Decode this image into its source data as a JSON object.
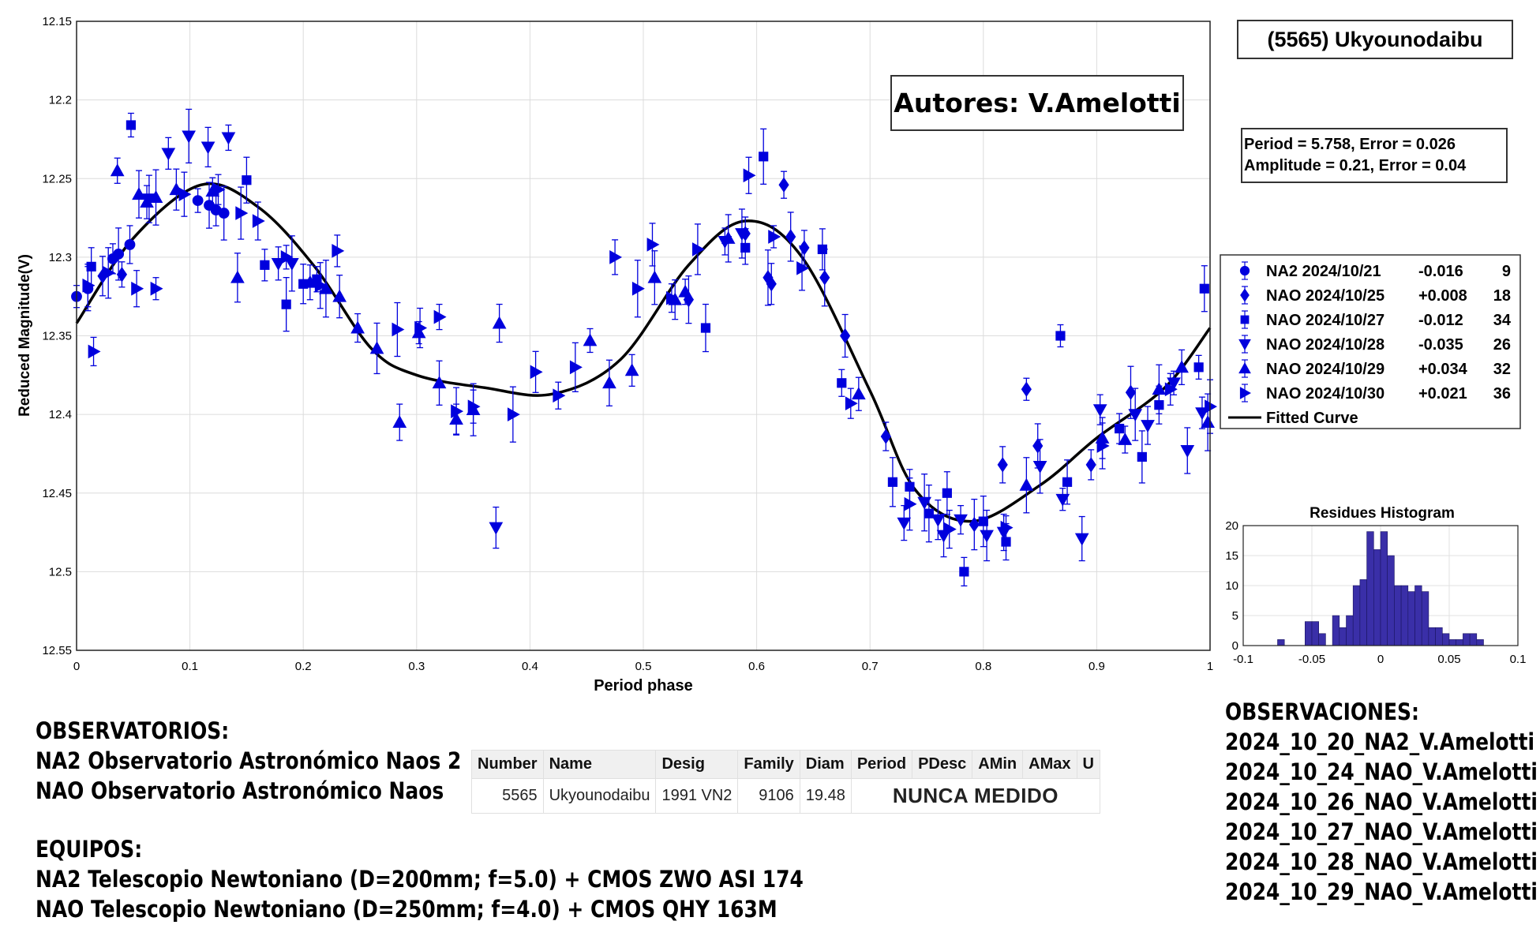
{
  "title_box": "(5565) Ukyounodaibu",
  "authors_box": "Autores: V.Amelotti",
  "period_box": {
    "line1": "Period =  5.758, Error = 0.026",
    "line2": "Amplitude = 0.21, Error = 0.04"
  },
  "chart_data": [
    {
      "type": "scatter",
      "xlabel": "Period phase",
      "ylabel": "Reduced Magnitude(V)",
      "xlim": [
        0,
        1
      ],
      "ylim": [
        12.15,
        12.55
      ],
      "y_reversed": true,
      "x_ticks": [
        "0",
        "0.1",
        "0.2",
        "0.3",
        "0.4",
        "0.5",
        "0.6",
        "0.7",
        "0.8",
        "0.9",
        "1"
      ],
      "y_ticks": [
        "12.15",
        "12.2",
        "12.25",
        "12.3",
        "12.35",
        "12.4",
        "12.45",
        "12.5",
        "12.55"
      ],
      "grid": true,
      "legend_position": "right",
      "legend": [
        {
          "label": "NA2 2024/10/21",
          "offset": "-0.016",
          "count": "9",
          "marker": "circle"
        },
        {
          "label": "NAO 2024/10/25",
          "offset": "+0.008",
          "count": "18",
          "marker": "diamond"
        },
        {
          "label": "NAO 2024/10/27",
          "offset": "-0.012",
          "count": "34",
          "marker": "square"
        },
        {
          "label": "NAO 2024/10/28",
          "offset": "-0.035",
          "count": "26",
          "marker": "triangle-down"
        },
        {
          "label": "NAO 2024/10/29",
          "offset": "+0.034",
          "count": "32",
          "marker": "triangle-up"
        },
        {
          "label": "NAO 2024/10/30",
          "offset": "+0.021",
          "count": "36",
          "marker": "triangle-right"
        },
        {
          "label": "Fitted Curve",
          "offset": "",
          "count": "",
          "marker": "line"
        }
      ],
      "points": [
        {
          "x": 0.0,
          "y": 12.325,
          "m": "circle"
        },
        {
          "x": 0.01,
          "y": 12.32,
          "m": "circle"
        },
        {
          "x": 0.032,
          "y": 12.301,
          "m": "circle"
        },
        {
          "x": 0.037,
          "y": 12.298,
          "m": "circle"
        },
        {
          "x": 0.047,
          "y": 12.292,
          "m": "circle"
        },
        {
          "x": 0.107,
          "y": 12.264,
          "m": "circle"
        },
        {
          "x": 0.117,
          "y": 12.267,
          "m": "circle"
        },
        {
          "x": 0.123,
          "y": 12.27,
          "m": "circle"
        },
        {
          "x": 0.13,
          "y": 12.272,
          "m": "circle"
        },
        {
          "x": 0.023,
          "y": 12.312,
          "m": "diamond"
        },
        {
          "x": 0.04,
          "y": 12.311,
          "m": "diamond"
        },
        {
          "x": 0.54,
          "y": 12.327,
          "m": "diamond"
        },
        {
          "x": 0.59,
          "y": 12.285,
          "m": "diamond"
        },
        {
          "x": 0.61,
          "y": 12.313,
          "m": "diamond"
        },
        {
          "x": 0.613,
          "y": 12.317,
          "m": "diamond"
        },
        {
          "x": 0.624,
          "y": 12.254,
          "m": "diamond"
        },
        {
          "x": 0.63,
          "y": 12.287,
          "m": "diamond"
        },
        {
          "x": 0.642,
          "y": 12.294,
          "m": "diamond"
        },
        {
          "x": 0.66,
          "y": 12.313,
          "m": "diamond"
        },
        {
          "x": 0.678,
          "y": 12.35,
          "m": "diamond"
        },
        {
          "x": 0.714,
          "y": 12.414,
          "m": "diamond"
        },
        {
          "x": 0.792,
          "y": 12.47,
          "m": "diamond"
        },
        {
          "x": 0.817,
          "y": 12.432,
          "m": "diamond"
        },
        {
          "x": 0.838,
          "y": 12.384,
          "m": "diamond"
        },
        {
          "x": 0.848,
          "y": 12.42,
          "m": "diamond"
        },
        {
          "x": 0.895,
          "y": 12.432,
          "m": "diamond"
        },
        {
          "x": 0.93,
          "y": 12.386,
          "m": "diamond"
        },
        {
          "x": 0.013,
          "y": 12.306,
          "m": "square"
        },
        {
          "x": 0.048,
          "y": 12.216,
          "m": "square"
        },
        {
          "x": 0.15,
          "y": 12.251,
          "m": "square"
        },
        {
          "x": 0.166,
          "y": 12.305,
          "m": "square"
        },
        {
          "x": 0.185,
          "y": 12.33,
          "m": "square"
        },
        {
          "x": 0.2,
          "y": 12.317,
          "m": "square"
        },
        {
          "x": 0.212,
          "y": 12.314,
          "m": "square"
        },
        {
          "x": 0.555,
          "y": 12.345,
          "m": "square"
        },
        {
          "x": 0.59,
          "y": 12.294,
          "m": "square"
        },
        {
          "x": 0.606,
          "y": 12.236,
          "m": "square"
        },
        {
          "x": 0.658,
          "y": 12.295,
          "m": "square"
        },
        {
          "x": 0.675,
          "y": 12.38,
          "m": "square"
        },
        {
          "x": 0.72,
          "y": 12.443,
          "m": "square"
        },
        {
          "x": 0.735,
          "y": 12.446,
          "m": "square"
        },
        {
          "x": 0.752,
          "y": 12.463,
          "m": "square"
        },
        {
          "x": 0.768,
          "y": 12.45,
          "m": "square"
        },
        {
          "x": 0.783,
          "y": 12.5,
          "m": "square"
        },
        {
          "x": 0.8,
          "y": 12.468,
          "m": "square"
        },
        {
          "x": 0.82,
          "y": 12.481,
          "m": "square"
        },
        {
          "x": 0.868,
          "y": 12.35,
          "m": "square"
        },
        {
          "x": 0.874,
          "y": 12.443,
          "m": "square"
        },
        {
          "x": 0.92,
          "y": 12.409,
          "m": "square"
        },
        {
          "x": 0.94,
          "y": 12.427,
          "m": "square"
        },
        {
          "x": 0.955,
          "y": 12.394,
          "m": "square"
        },
        {
          "x": 0.99,
          "y": 12.37,
          "m": "square"
        },
        {
          "x": 0.995,
          "y": 12.32,
          "m": "square"
        },
        {
          "x": 0.081,
          "y": 12.234,
          "m": "triangle-down"
        },
        {
          "x": 0.099,
          "y": 12.223,
          "m": "triangle-down"
        },
        {
          "x": 0.116,
          "y": 12.23,
          "m": "triangle-down"
        },
        {
          "x": 0.134,
          "y": 12.224,
          "m": "triangle-down"
        },
        {
          "x": 0.064,
          "y": 12.263,
          "m": "triangle-down"
        },
        {
          "x": 0.178,
          "y": 12.304,
          "m": "triangle-down"
        },
        {
          "x": 0.19,
          "y": 12.304,
          "m": "triangle-down"
        },
        {
          "x": 0.37,
          "y": 12.472,
          "m": "triangle-down"
        },
        {
          "x": 0.572,
          "y": 12.29,
          "m": "triangle-down"
        },
        {
          "x": 0.587,
          "y": 12.285,
          "m": "triangle-down"
        },
        {
          "x": 0.73,
          "y": 12.469,
          "m": "triangle-down"
        },
        {
          "x": 0.748,
          "y": 12.456,
          "m": "triangle-down"
        },
        {
          "x": 0.765,
          "y": 12.477,
          "m": "triangle-down"
        },
        {
          "x": 0.78,
          "y": 12.467,
          "m": "triangle-down"
        },
        {
          "x": 0.803,
          "y": 12.477,
          "m": "triangle-down"
        },
        {
          "x": 0.818,
          "y": 12.475,
          "m": "triangle-down"
        },
        {
          "x": 0.87,
          "y": 12.454,
          "m": "triangle-down"
        },
        {
          "x": 0.887,
          "y": 12.479,
          "m": "triangle-down"
        },
        {
          "x": 0.903,
          "y": 12.397,
          "m": "triangle-down"
        },
        {
          "x": 0.934,
          "y": 12.4,
          "m": "triangle-down"
        },
        {
          "x": 0.945,
          "y": 12.407,
          "m": "triangle-down"
        },
        {
          "x": 0.968,
          "y": 12.38,
          "m": "triangle-down"
        },
        {
          "x": 0.98,
          "y": 12.423,
          "m": "triangle-down"
        },
        {
          "x": 0.993,
          "y": 12.399,
          "m": "triangle-down"
        },
        {
          "x": 0.85,
          "y": 12.433,
          "m": "triangle-down"
        },
        {
          "x": 0.76,
          "y": 12.467,
          "m": "triangle-down"
        },
        {
          "x": 0.036,
          "y": 12.245,
          "m": "triangle-up"
        },
        {
          "x": 0.055,
          "y": 12.26,
          "m": "triangle-up"
        },
        {
          "x": 0.062,
          "y": 12.265,
          "m": "triangle-up"
        },
        {
          "x": 0.07,
          "y": 12.262,
          "m": "triangle-up"
        },
        {
          "x": 0.088,
          "y": 12.257,
          "m": "triangle-up"
        },
        {
          "x": 0.12,
          "y": 12.258,
          "m": "triangle-up"
        },
        {
          "x": 0.142,
          "y": 12.313,
          "m": "triangle-up"
        },
        {
          "x": 0.206,
          "y": 12.316,
          "m": "triangle-up"
        },
        {
          "x": 0.22,
          "y": 12.32,
          "m": "triangle-up"
        },
        {
          "x": 0.232,
          "y": 12.325,
          "m": "triangle-up"
        },
        {
          "x": 0.248,
          "y": 12.345,
          "m": "triangle-up"
        },
        {
          "x": 0.265,
          "y": 12.358,
          "m": "triangle-up"
        },
        {
          "x": 0.285,
          "y": 12.405,
          "m": "triangle-up"
        },
        {
          "x": 0.302,
          "y": 12.348,
          "m": "triangle-up"
        },
        {
          "x": 0.32,
          "y": 12.38,
          "m": "triangle-up"
        },
        {
          "x": 0.335,
          "y": 12.403,
          "m": "triangle-up"
        },
        {
          "x": 0.35,
          "y": 12.397,
          "m": "triangle-up"
        },
        {
          "x": 0.373,
          "y": 12.342,
          "m": "triangle-up"
        },
        {
          "x": 0.453,
          "y": 12.353,
          "m": "triangle-up"
        },
        {
          "x": 0.47,
          "y": 12.38,
          "m": "triangle-up"
        },
        {
          "x": 0.49,
          "y": 12.372,
          "m": "triangle-up"
        },
        {
          "x": 0.51,
          "y": 12.313,
          "m": "triangle-up"
        },
        {
          "x": 0.528,
          "y": 12.327,
          "m": "triangle-up"
        },
        {
          "x": 0.537,
          "y": 12.322,
          "m": "triangle-up"
        },
        {
          "x": 0.575,
          "y": 12.288,
          "m": "triangle-up"
        },
        {
          "x": 0.69,
          "y": 12.387,
          "m": "triangle-up"
        },
        {
          "x": 0.838,
          "y": 12.445,
          "m": "triangle-up"
        },
        {
          "x": 0.905,
          "y": 12.415,
          "m": "triangle-up"
        },
        {
          "x": 0.925,
          "y": 12.416,
          "m": "triangle-up"
        },
        {
          "x": 0.955,
          "y": 12.384,
          "m": "triangle-up"
        },
        {
          "x": 0.975,
          "y": 12.37,
          "m": "triangle-up"
        },
        {
          "x": 0.998,
          "y": 12.405,
          "m": "triangle-up"
        },
        {
          "x": 0.01,
          "y": 12.318,
          "m": "triangle-right"
        },
        {
          "x": 0.015,
          "y": 12.36,
          "m": "triangle-right"
        },
        {
          "x": 0.028,
          "y": 12.31,
          "m": "triangle-right"
        },
        {
          "x": 0.053,
          "y": 12.32,
          "m": "triangle-right"
        },
        {
          "x": 0.07,
          "y": 12.32,
          "m": "triangle-right"
        },
        {
          "x": 0.095,
          "y": 12.26,
          "m": "triangle-right"
        },
        {
          "x": 0.125,
          "y": 12.257,
          "m": "triangle-right"
        },
        {
          "x": 0.145,
          "y": 12.272,
          "m": "triangle-right"
        },
        {
          "x": 0.16,
          "y": 12.277,
          "m": "triangle-right"
        },
        {
          "x": 0.185,
          "y": 12.3,
          "m": "triangle-right"
        },
        {
          "x": 0.215,
          "y": 12.318,
          "m": "triangle-right"
        },
        {
          "x": 0.23,
          "y": 12.296,
          "m": "triangle-right"
        },
        {
          "x": 0.283,
          "y": 12.346,
          "m": "triangle-right"
        },
        {
          "x": 0.303,
          "y": 12.345,
          "m": "triangle-right"
        },
        {
          "x": 0.32,
          "y": 12.338,
          "m": "triangle-right"
        },
        {
          "x": 0.335,
          "y": 12.398,
          "m": "triangle-right"
        },
        {
          "x": 0.35,
          "y": 12.395,
          "m": "triangle-right"
        },
        {
          "x": 0.385,
          "y": 12.4,
          "m": "triangle-right"
        },
        {
          "x": 0.405,
          "y": 12.373,
          "m": "triangle-right"
        },
        {
          "x": 0.425,
          "y": 12.388,
          "m": "triangle-right"
        },
        {
          "x": 0.44,
          "y": 12.37,
          "m": "triangle-right"
        },
        {
          "x": 0.475,
          "y": 12.3,
          "m": "triangle-right"
        },
        {
          "x": 0.495,
          "y": 12.32,
          "m": "triangle-right"
        },
        {
          "x": 0.508,
          "y": 12.292,
          "m": "triangle-right"
        },
        {
          "x": 0.525,
          "y": 12.326,
          "m": "triangle-right"
        },
        {
          "x": 0.548,
          "y": 12.295,
          "m": "triangle-right"
        },
        {
          "x": 0.593,
          "y": 12.248,
          "m": "triangle-right"
        },
        {
          "x": 0.615,
          "y": 12.287,
          "m": "triangle-right"
        },
        {
          "x": 0.64,
          "y": 12.307,
          "m": "triangle-right"
        },
        {
          "x": 0.683,
          "y": 12.393,
          "m": "triangle-right"
        },
        {
          "x": 0.735,
          "y": 12.457,
          "m": "triangle-right"
        },
        {
          "x": 0.77,
          "y": 12.473,
          "m": "triangle-right"
        },
        {
          "x": 0.82,
          "y": 12.472,
          "m": "triangle-right"
        },
        {
          "x": 0.905,
          "y": 12.42,
          "m": "triangle-right"
        },
        {
          "x": 0.965,
          "y": 12.384,
          "m": "triangle-right"
        },
        {
          "x": 1.0,
          "y": 12.395,
          "m": "triangle-right"
        }
      ],
      "fitted_curve": {
        "period": 5.758,
        "amplitude": 0.21
      }
    },
    {
      "type": "bar",
      "title": "Residues Histogram",
      "xlim": [
        -0.1,
        0.1
      ],
      "ylim": [
        0,
        20
      ],
      "x_ticks": [
        "-0.1",
        "-0.05",
        "0",
        "0.05",
        "0.1"
      ],
      "y_ticks": [
        "0",
        "5",
        "10",
        "15",
        "20"
      ],
      "bin_width": 0.005,
      "bin_starts": [
        -0.075,
        -0.07,
        -0.065,
        -0.06,
        -0.055,
        -0.05,
        -0.045,
        -0.04,
        -0.035,
        -0.03,
        -0.025,
        -0.02,
        -0.015,
        -0.01,
        -0.005,
        0,
        0.005,
        0.01,
        0.015,
        0.02,
        0.025,
        0.03,
        0.035,
        0.04,
        0.045,
        0.05,
        0.055,
        0.06,
        0.065,
        0.07,
        0.075
      ],
      "values": [
        1,
        0,
        0,
        0,
        4,
        4,
        2,
        0,
        5,
        3,
        5,
        10,
        11,
        19,
        16,
        19,
        15,
        10,
        10,
        9,
        10,
        9,
        3,
        3,
        2,
        1,
        1,
        2,
        2,
        1,
        0
      ]
    }
  ],
  "notes_left": {
    "obs_heading": "OBSERVATORIOS:",
    "obs_lines": [
      "NA2 Observatorio Astronómico Naos 2",
      "NAO Observatorio Astronómico Naos"
    ],
    "equip_heading": "EQUIPOS:",
    "equip_lines": [
      "NA2 Telescopio Newtoniano (D=200mm; f=5.0) + CMOS ZWO ASI 174",
      "NAO Telescopio Newtoniano (D=250mm; f=4.0) + CMOS QHY 163M"
    ]
  },
  "notes_right": {
    "heading": "OBSERVACIONES:",
    "lines": [
      "2024_10_20_NA2_V.Amelotti",
      "2024_10_24_NAO_V.Amelotti",
      "2024_10_26_NAO_V.Amelotti",
      "2024_10_27_NAO_V.Amelotti",
      "2024_10_28_NAO_V.Amelotti",
      "2024_10_29_NAO_V.Amelotti"
    ]
  },
  "db_table": {
    "headers": [
      "Number",
      "Name",
      "Desig",
      "Family",
      "Diam",
      "Period",
      "PDesc",
      "AMin",
      "AMax",
      "U"
    ],
    "row": {
      "number": "5565",
      "name": "Ukyounodaibu",
      "desig": "1991 VN2",
      "family": "9106",
      "diam": "19.48",
      "status": "NUNCA MEDIDO"
    }
  },
  "colors": {
    "marker": "#0000dd",
    "curve": "#000000",
    "hist_bar": "#3a2fa8",
    "status": "#e30000"
  }
}
